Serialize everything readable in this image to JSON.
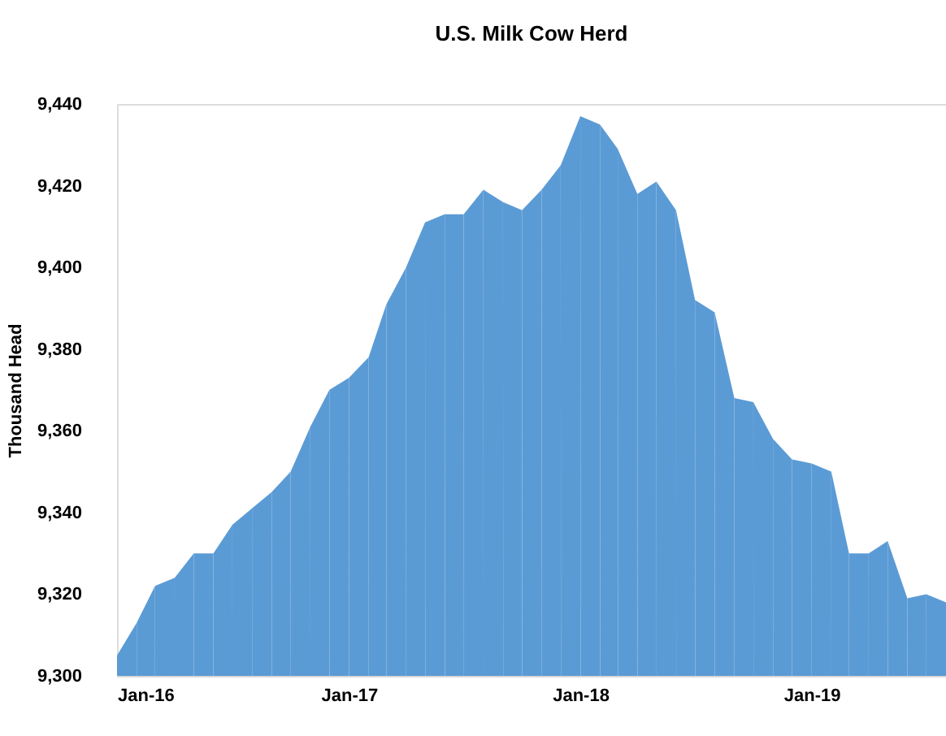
{
  "chart_data": {
    "type": "area",
    "title": "U.S. Milk Cow Herd",
    "ylabel": "Thousand Head",
    "x": [
      "2016-01",
      "2016-02",
      "2016-03",
      "2016-04",
      "2016-05",
      "2016-06",
      "2016-07",
      "2016-08",
      "2016-09",
      "2016-10",
      "2016-11",
      "2016-12",
      "2017-01",
      "2017-02",
      "2017-03",
      "2017-04",
      "2017-05",
      "2017-06",
      "2017-07",
      "2017-08",
      "2017-09",
      "2017-10",
      "2017-11",
      "2017-12",
      "2018-01",
      "2018-02",
      "2018-03",
      "2018-04",
      "2018-05",
      "2018-06",
      "2018-07",
      "2018-08",
      "2018-09",
      "2018-10",
      "2018-11",
      "2018-12",
      "2019-01",
      "2019-02",
      "2019-03",
      "2019-04",
      "2019-05",
      "2019-06",
      "2019-07",
      "2019-08"
    ],
    "series": [
      {
        "color": "#5b9bd5",
        "values": [
          9305,
          9313,
          9322,
          9324,
          9330,
          9330,
          9337,
          9341,
          9345,
          9350,
          9361,
          9370,
          9373,
          9378,
          9391,
          9400,
          9411,
          9413,
          9413,
          9419,
          9416,
          9414,
          9419,
          9425,
          9437,
          9435,
          9429,
          9418,
          9421,
          9414,
          9392,
          9389,
          9368,
          9367,
          9358,
          9353,
          9352,
          9350,
          9330,
          9330,
          9333,
          9319,
          9320,
          9318
        ]
      }
    ],
    "xlim": [
      "2016-01",
      "2019-08"
    ],
    "xticks": [
      {
        "value": "2016-01",
        "label": "Jan-16"
      },
      {
        "value": "2017-01",
        "label": "Jan-17"
      },
      {
        "value": "2018-01",
        "label": "Jan-18"
      },
      {
        "value": "2019-01",
        "label": "Jan-19"
      }
    ],
    "ylim": [
      9300,
      9440
    ],
    "yticks": [
      {
        "value": 9300,
        "label": "9,300"
      },
      {
        "value": 9320,
        "label": "9,320"
      },
      {
        "value": 9340,
        "label": "9,340"
      },
      {
        "value": 9360,
        "label": "9,360"
      },
      {
        "value": 9380,
        "label": "9,380"
      },
      {
        "value": 9400,
        "label": "9,400"
      },
      {
        "value": 9420,
        "label": "9,420"
      },
      {
        "value": 9440,
        "label": "9,440"
      }
    ],
    "grid": false,
    "legend": false
  }
}
